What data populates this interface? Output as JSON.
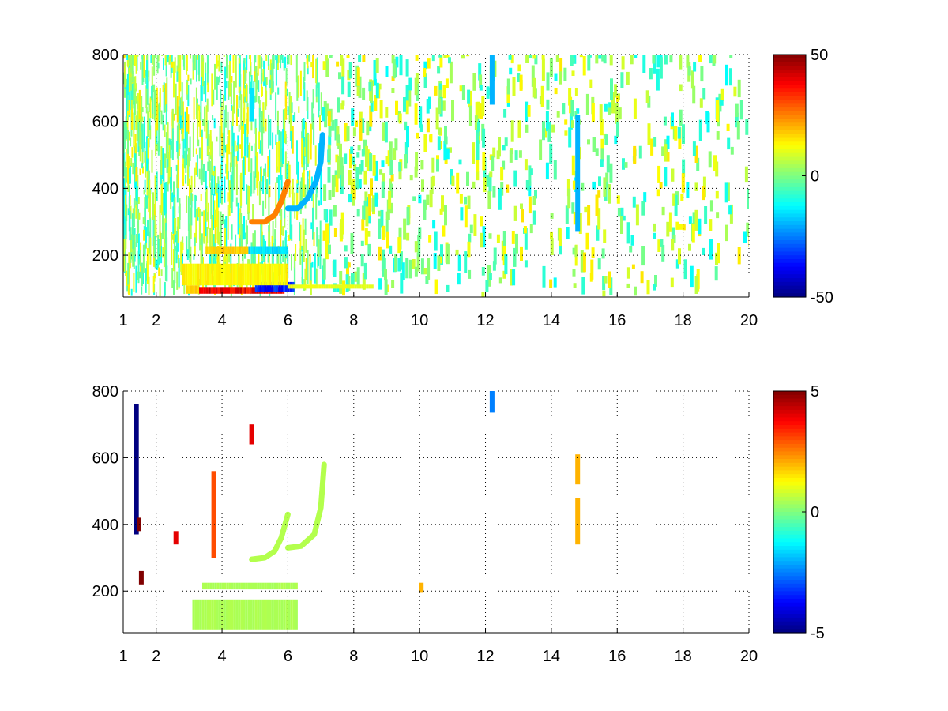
{
  "colors": {
    "background": "#ffffff",
    "axis": "#000000",
    "grid": "#000000",
    "colormap": "jet"
  },
  "chart_data": [
    {
      "type": "heatmap",
      "title": "",
      "xlabel": "",
      "ylabel": "",
      "xlim": [
        1,
        20
      ],
      "ylim": [
        75,
        800
      ],
      "xticks": [
        1,
        2,
        4,
        6,
        8,
        10,
        12,
        14,
        16,
        18,
        20
      ],
      "xtick_labels": [
        "1",
        "2",
        "4",
        "6",
        "8",
        "10",
        "12",
        "14",
        "16",
        "18",
        "20"
      ],
      "yticks": [
        200,
        400,
        600,
        800
      ],
      "ytick_labels": [
        "200",
        "400",
        "600",
        "800"
      ],
      "grid": true,
      "colorbar": {
        "min": -50,
        "max": 50,
        "ticks": [
          50,
          0,
          -50
        ],
        "tick_labels": [
          "50",
          "0",
          "-50"
        ]
      },
      "features": [
        {
          "kind": "band",
          "x": [
            3.3,
            5.9
          ],
          "y": [
            85,
            105
          ],
          "value": 45
        },
        {
          "kind": "band",
          "x": [
            2.9,
            3.3
          ],
          "y": [
            85,
            110
          ],
          "value": 20
        },
        {
          "kind": "band",
          "x": [
            5.0,
            6.2
          ],
          "y": [
            90,
            120
          ],
          "value": -40
        },
        {
          "kind": "band",
          "x": [
            2.8,
            6.0
          ],
          "y": [
            110,
            175
          ],
          "value": 15
        },
        {
          "kind": "band",
          "x": [
            3.5,
            4.8
          ],
          "y": [
            205,
            225
          ],
          "value": 20
        },
        {
          "kind": "band",
          "x": [
            4.8,
            6.0
          ],
          "y": [
            205,
            225
          ],
          "value": -18
        },
        {
          "kind": "band",
          "x": [
            6.0,
            8.6
          ],
          "y": [
            100,
            112
          ],
          "value": 12
        },
        {
          "kind": "curve",
          "x": [
            4.9,
            5.3,
            5.6,
            5.8,
            6.0
          ],
          "y": [
            300,
            300,
            320,
            360,
            420
          ],
          "value": 25
        },
        {
          "kind": "curve",
          "x": [
            6.0,
            6.3,
            6.6,
            6.85,
            7.0,
            7.05
          ],
          "y": [
            340,
            340,
            370,
            420,
            480,
            560
          ],
          "value": -20
        },
        {
          "kind": "stripe",
          "x": 14.8,
          "y": [
            270,
            620
          ],
          "value": -20
        },
        {
          "kind": "stripe",
          "x": 12.2,
          "y": [
            650,
            800
          ],
          "value": -20
        },
        {
          "kind": "stripe",
          "x": 4.9,
          "y": [
            600,
            700
          ],
          "value": -15
        }
      ]
    },
    {
      "type": "heatmap",
      "title": "",
      "xlabel": "",
      "ylabel": "",
      "xlim": [
        1,
        20
      ],
      "ylim": [
        75,
        800
      ],
      "xticks": [
        1,
        2,
        4,
        6,
        8,
        10,
        12,
        14,
        16,
        18,
        20
      ],
      "xtick_labels": [
        "1",
        "2",
        "4",
        "6",
        "8",
        "10",
        "12",
        "14",
        "16",
        "18",
        "20"
      ],
      "yticks": [
        200,
        400,
        600,
        800
      ],
      "ytick_labels": [
        "200",
        "400",
        "600",
        "800"
      ],
      "grid": true,
      "colorbar": {
        "min": -5,
        "max": 5,
        "ticks": [
          5,
          0,
          -5
        ],
        "tick_labels": [
          "5",
          "0",
          "-5"
        ]
      },
      "features": [
        {
          "kind": "band",
          "x": [
            3.1,
            6.3
          ],
          "y": [
            85,
            175
          ],
          "value": 0.5
        },
        {
          "kind": "band",
          "x": [
            3.4,
            6.3
          ],
          "y": [
            205,
            225
          ],
          "value": 0.5
        },
        {
          "kind": "curve",
          "x": [
            4.9,
            5.3,
            5.6,
            5.8,
            6.0
          ],
          "y": [
            295,
            300,
            320,
            360,
            430
          ],
          "value": 0.5
        },
        {
          "kind": "curve",
          "x": [
            6.0,
            6.4,
            6.8,
            7.0,
            7.1
          ],
          "y": [
            330,
            335,
            370,
            450,
            580
          ],
          "value": 0.5
        },
        {
          "kind": "stripe",
          "x": 1.4,
          "y": [
            370,
            760
          ],
          "value": -5
        },
        {
          "kind": "stripe",
          "x": 1.48,
          "y": [
            380,
            420
          ],
          "value": 5
        },
        {
          "kind": "stripe",
          "x": 1.55,
          "y": [
            220,
            260
          ],
          "value": 5
        },
        {
          "kind": "stripe",
          "x": 3.75,
          "y": [
            300,
            560
          ],
          "value": 3
        },
        {
          "kind": "stripe",
          "x": 4.9,
          "y": [
            640,
            700
          ],
          "value": 4
        },
        {
          "kind": "stripe",
          "x": 2.6,
          "y": [
            340,
            380
          ],
          "value": 4
        },
        {
          "kind": "stripe",
          "x": 14.8,
          "y": [
            340,
            480
          ],
          "value": 2
        },
        {
          "kind": "stripe",
          "x": 14.8,
          "y": [
            520,
            610
          ],
          "value": 2
        },
        {
          "kind": "stripe",
          "x": 12.2,
          "y": [
            735,
            800
          ],
          "value": -2.5
        },
        {
          "kind": "stripe",
          "x": 10.05,
          "y": [
            195,
            225
          ],
          "value": 2
        }
      ]
    }
  ]
}
